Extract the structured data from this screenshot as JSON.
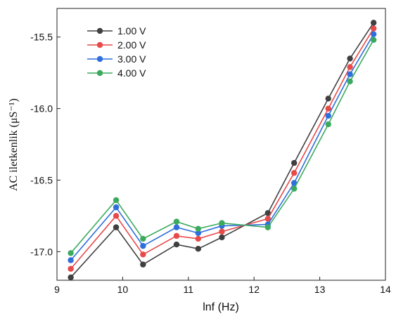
{
  "chart_data": {
    "type": "line",
    "xlabel": "lnf (Hz)",
    "ylabel": "AC iletkenlik (μS⁻¹)",
    "xlim": [
      9,
      14
    ],
    "ylim": [
      -17.2,
      -15.3
    ],
    "x_ticks": [
      "9",
      "10",
      "11",
      "12",
      "13",
      "14"
    ],
    "y_ticks": [
      "-15.5",
      "-16.0",
      "-16.5",
      "-17.0"
    ],
    "x_tick_values": [
      9,
      10,
      11,
      12,
      13,
      14
    ],
    "y_tick_values": [
      -15.5,
      -16.0,
      -16.5,
      -17.0
    ],
    "grid": false,
    "legend_position": "top-left",
    "x": [
      9.21,
      9.9,
      10.31,
      10.82,
      11.15,
      11.51,
      12.21,
      12.61,
      13.13,
      13.46,
      13.82
    ],
    "series": [
      {
        "name": "1.00 V",
        "color": "#404040",
        "values": [
          -17.18,
          -16.83,
          -17.09,
          -16.95,
          -16.98,
          -16.9,
          -16.73,
          -16.38,
          -15.93,
          -15.65,
          -15.4
        ]
      },
      {
        "name": "2.00 V",
        "color": "#e84a4a",
        "values": [
          -17.12,
          -16.75,
          -17.02,
          -16.89,
          -16.91,
          -16.86,
          -16.77,
          -16.45,
          -16.0,
          -15.71,
          -15.44
        ]
      },
      {
        "name": "3.00 V",
        "color": "#2e6fdc",
        "values": [
          -17.06,
          -16.69,
          -16.96,
          -16.83,
          -16.87,
          -16.82,
          -16.81,
          -16.52,
          -16.05,
          -15.76,
          -15.48
        ]
      },
      {
        "name": "4.00 V",
        "color": "#3caa5e",
        "values": [
          -17.01,
          -16.64,
          -16.91,
          -16.79,
          -16.84,
          -16.8,
          -16.83,
          -16.56,
          -16.11,
          -15.81,
          -15.52
        ]
      }
    ]
  }
}
